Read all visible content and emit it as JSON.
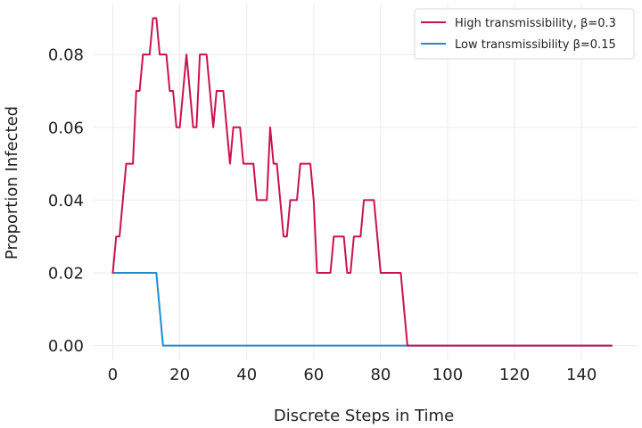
{
  "chart_data": {
    "type": "line",
    "title": "",
    "xlabel": "Discrete Steps in Time",
    "ylabel": "Proportion Infected",
    "xlim": [
      -6,
      157
    ],
    "ylim": [
      -0.004,
      0.094
    ],
    "xticks": [
      0,
      20,
      40,
      60,
      80,
      100,
      120,
      140
    ],
    "yticks": [
      0.0,
      0.02,
      0.04,
      0.06,
      0.08
    ],
    "x_tick_labels": [
      "0",
      "20",
      "40",
      "60",
      "80",
      "100",
      "120",
      "140"
    ],
    "y_tick_labels": [
      "0.00",
      "0.02",
      "0.04",
      "0.06",
      "0.08"
    ],
    "grid": true,
    "legend_position": "top-right",
    "series": [
      {
        "name": "High transmissibility, β=0.3",
        "color": "#cc1150",
        "x": [
          0,
          1,
          2,
          3,
          4,
          5,
          6,
          7,
          8,
          9,
          10,
          11,
          12,
          13,
          14,
          15,
          16,
          17,
          18,
          19,
          20,
          21,
          22,
          23,
          24,
          25,
          26,
          27,
          28,
          29,
          30,
          31,
          32,
          33,
          34,
          35,
          36,
          37,
          38,
          39,
          40,
          41,
          42,
          43,
          44,
          45,
          46,
          47,
          48,
          49,
          50,
          51,
          52,
          53,
          54,
          55,
          56,
          57,
          58,
          59,
          60,
          61,
          62,
          63,
          64,
          65,
          66,
          67,
          68,
          69,
          70,
          71,
          72,
          73,
          74,
          75,
          76,
          77,
          78,
          79,
          80,
          81,
          82,
          83,
          84,
          85,
          86,
          87,
          88,
          149
        ],
        "y": [
          0.02,
          0.03,
          0.03,
          0.04,
          0.05,
          0.05,
          0.05,
          0.07,
          0.07,
          0.08,
          0.08,
          0.08,
          0.09,
          0.09,
          0.08,
          0.08,
          0.08,
          0.07,
          0.07,
          0.06,
          0.06,
          0.07,
          0.08,
          0.07,
          0.06,
          0.06,
          0.08,
          0.08,
          0.08,
          0.07,
          0.06,
          0.07,
          0.07,
          0.07,
          0.06,
          0.05,
          0.06,
          0.06,
          0.06,
          0.05,
          0.05,
          0.05,
          0.05,
          0.04,
          0.04,
          0.04,
          0.04,
          0.06,
          0.05,
          0.05,
          0.04,
          0.03,
          0.03,
          0.04,
          0.04,
          0.04,
          0.05,
          0.05,
          0.05,
          0.05,
          0.04,
          0.02,
          0.02,
          0.02,
          0.02,
          0.02,
          0.03,
          0.03,
          0.03,
          0.03,
          0.02,
          0.02,
          0.03,
          0.03,
          0.03,
          0.04,
          0.04,
          0.04,
          0.04,
          0.03,
          0.02,
          0.02,
          0.02,
          0.02,
          0.02,
          0.02,
          0.02,
          0.01,
          0.0,
          0.0
        ]
      },
      {
        "name": "Low transmissibility β=0.15",
        "color": "#1f8bd6",
        "x": [
          0,
          13,
          15,
          149
        ],
        "y": [
          0.02,
          0.02,
          0.0,
          0.0
        ]
      }
    ]
  }
}
